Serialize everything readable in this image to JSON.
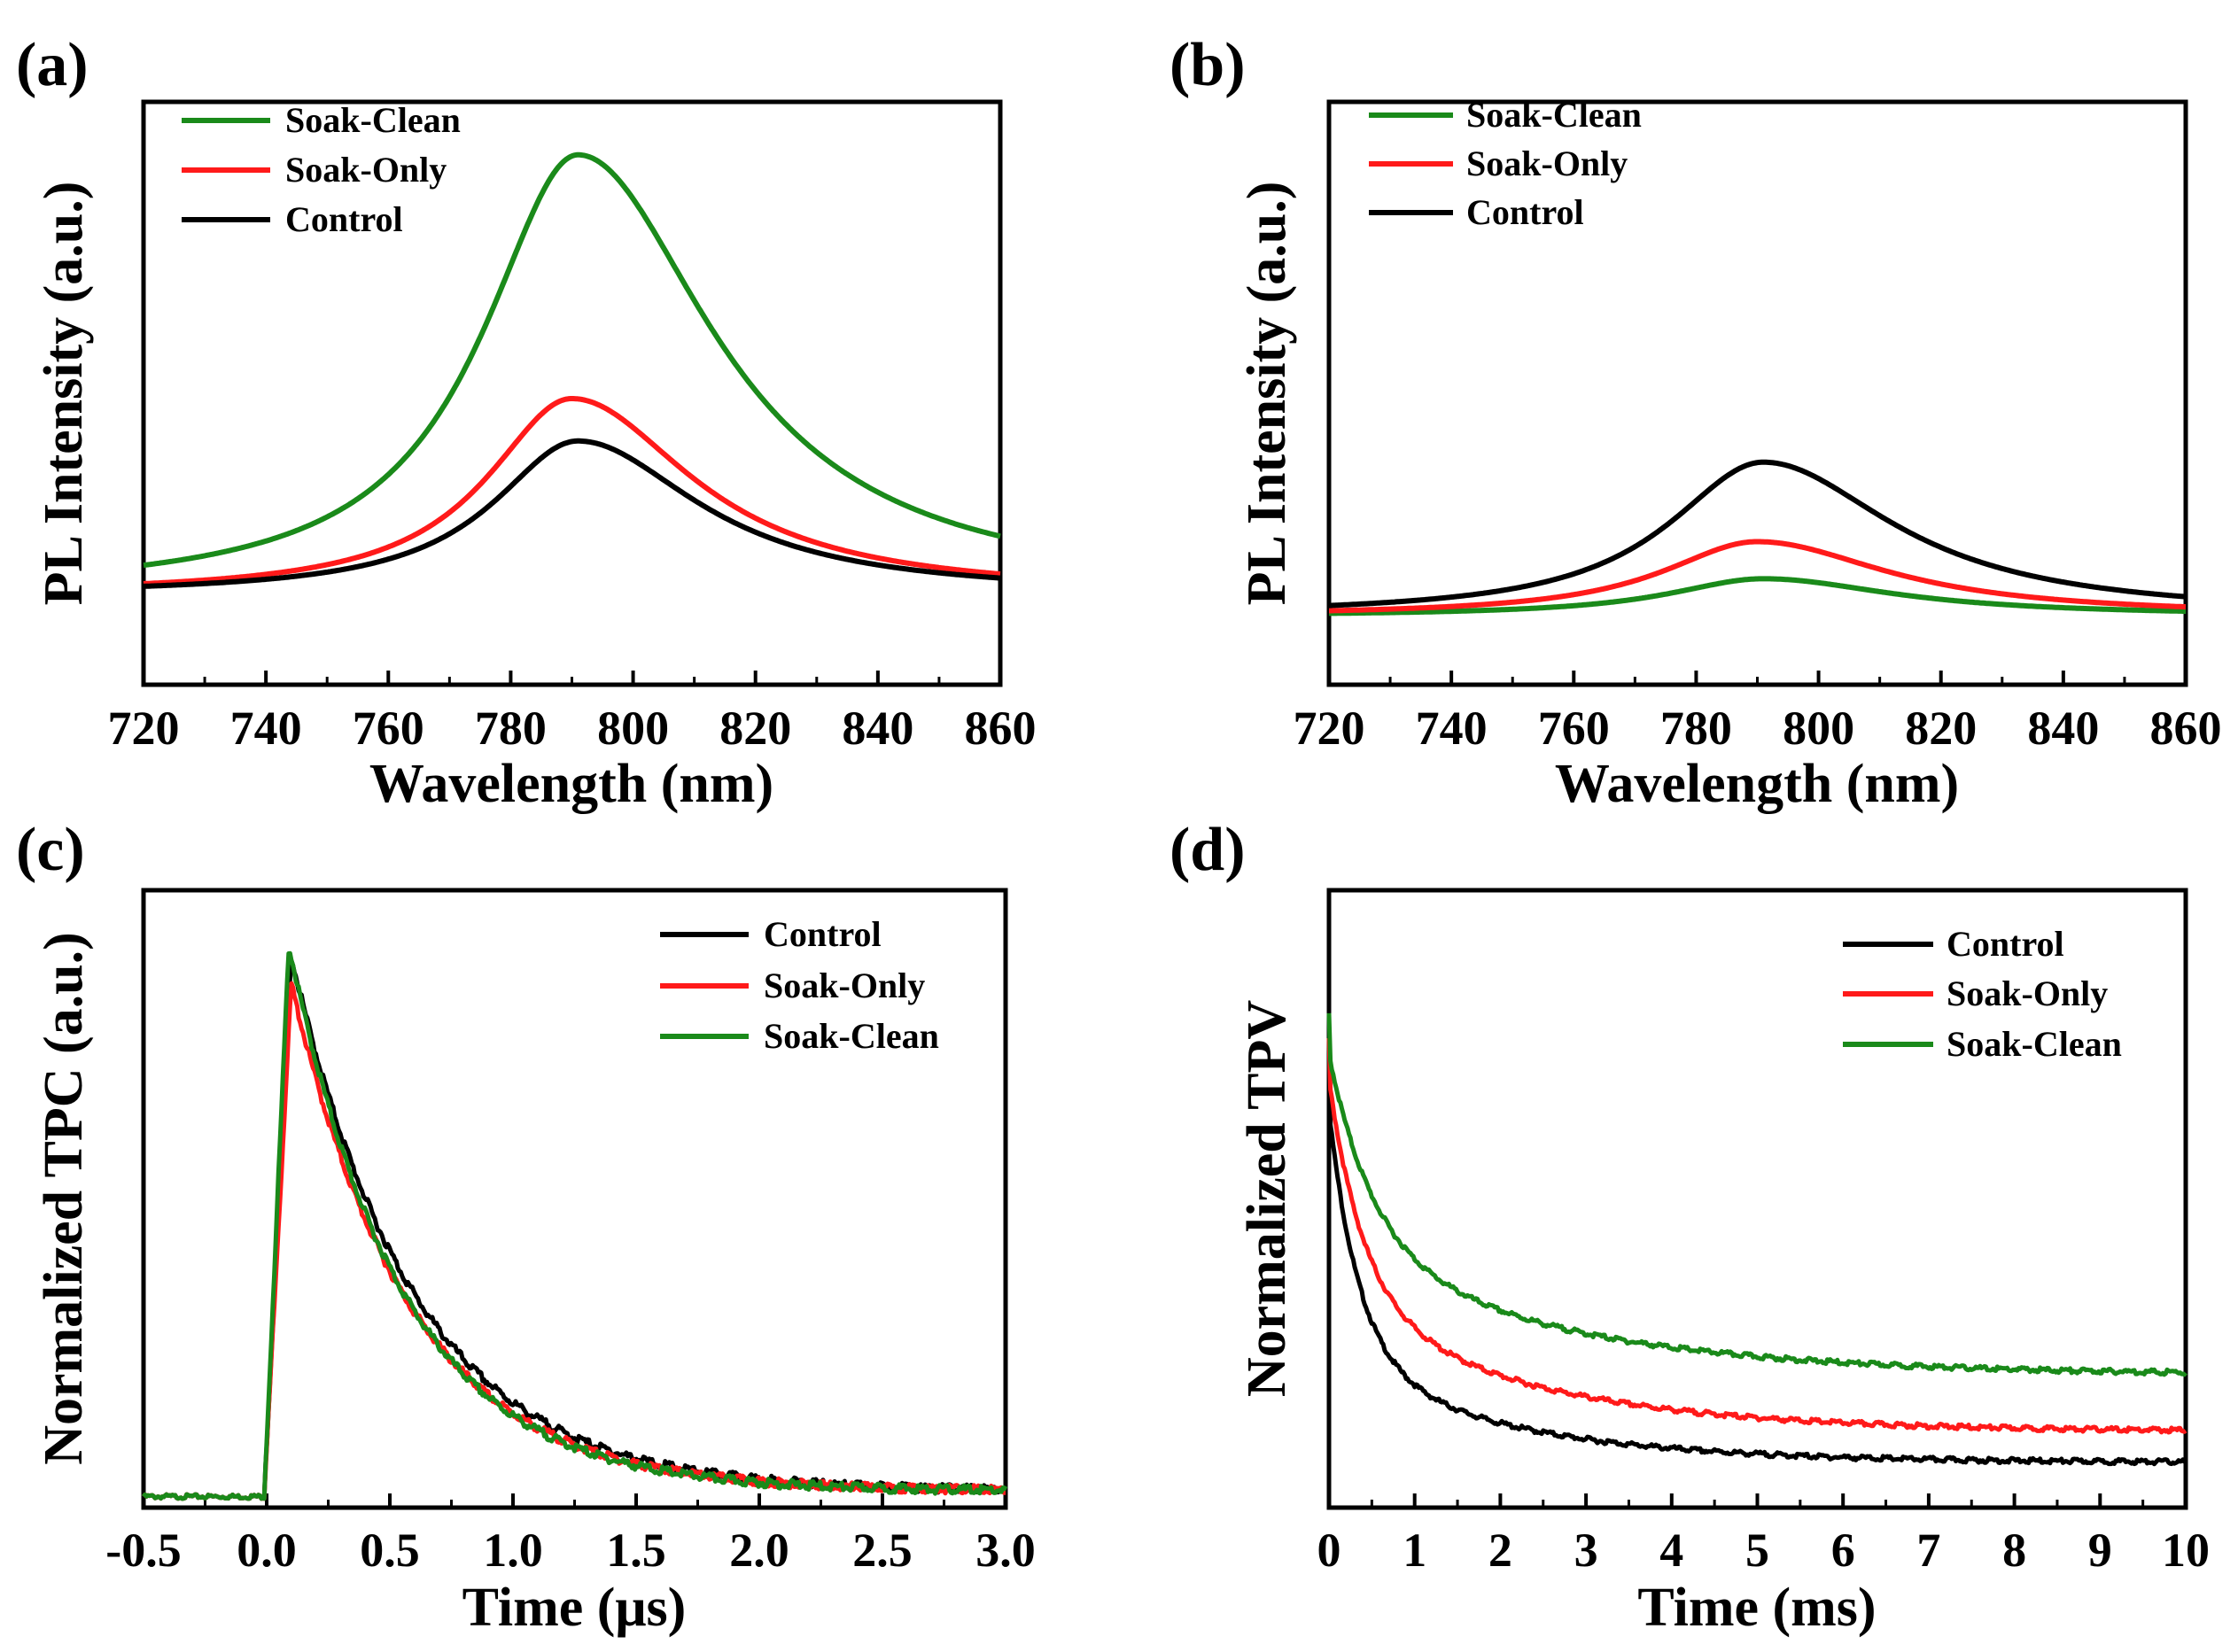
{
  "chart_data": [
    {
      "id": "a",
      "panel_label": "(a)",
      "type": "line",
      "xlabel": "Wavelength (nm)",
      "ylabel": "PL Intensity (a.u.)",
      "xlim": [
        720,
        860
      ],
      "ylim": [
        0,
        1.1
      ],
      "xticks": [
        720,
        740,
        760,
        780,
        800,
        820,
        840,
        860
      ],
      "xtick_labels": [
        "720",
        "740",
        "760",
        "780",
        "800",
        "820",
        "840",
        "860"
      ],
      "legend_position": "top-left",
      "legend": [
        "Soak-Clean",
        "Soak-Only",
        "Control"
      ],
      "series": [
        {
          "name": "Soak-Clean",
          "color": "#1a8a1a",
          "peak_x": 791,
          "peak": 1.0,
          "baseline": 0.17,
          "width_left": 19,
          "width_right": 27
        },
        {
          "name": "Soak-Only",
          "color": "#ff1a1a",
          "peak_x": 790,
          "peak": 0.54,
          "baseline": 0.17,
          "width_left": 17,
          "width_right": 24
        },
        {
          "name": "Control",
          "color": "#000000",
          "peak_x": 791,
          "peak": 0.46,
          "baseline": 0.17,
          "width_left": 17,
          "width_right": 24
        }
      ]
    },
    {
      "id": "b",
      "panel_label": "(b)",
      "type": "line",
      "xlabel": "Wavelength (nm)",
      "ylabel": "PL Intensity (a.u.)",
      "xlim": [
        720,
        860
      ],
      "ylim": [
        0,
        1.1
      ],
      "xticks": [
        720,
        740,
        760,
        780,
        800,
        820,
        840,
        860
      ],
      "xtick_labels": [
        "720",
        "740",
        "760",
        "780",
        "800",
        "820",
        "840",
        "860"
      ],
      "legend_position": "top-left",
      "legend": [
        "Soak-Clean",
        "Soak-Only",
        "Control"
      ],
      "series": [
        {
          "name": "Soak-Clean",
          "color": "#1a8a1a",
          "peak_x": 791,
          "peak": 0.2,
          "baseline": 0.13,
          "width_left": 19,
          "width_right": 26
        },
        {
          "name": "Soak-Only",
          "color": "#ff1a1a",
          "peak_x": 790,
          "peak": 0.27,
          "baseline": 0.13,
          "width_left": 19,
          "width_right": 26
        },
        {
          "name": "Control",
          "color": "#000000",
          "peak_x": 791,
          "peak": 0.42,
          "baseline": 0.13,
          "width_left": 19,
          "width_right": 26
        }
      ]
    },
    {
      "id": "c",
      "panel_label": "(c)",
      "type": "line",
      "xlabel": "Time (μs)",
      "ylabel": "Normalized TPC (a.u.)",
      "xlim": [
        -0.5,
        3.0
      ],
      "ylim": [
        -0.02,
        1.1
      ],
      "xticks": [
        -0.5,
        0.0,
        0.5,
        1.0,
        1.5,
        2.0,
        2.5,
        3.0
      ],
      "xtick_labels": [
        "-0.5",
        "0.0",
        "0.5",
        "1.0",
        "1.5",
        "2.0",
        "2.5",
        "3.0"
      ],
      "legend_position": "top-right",
      "legend": [
        "Control",
        "Soak-Only",
        "Soak-Clean"
      ],
      "series": [
        {
          "name": "Control",
          "color": "#000000",
          "onset": -0.01,
          "peak_t": 0.1,
          "peak": 0.98,
          "tau": 0.5,
          "floor": 0.01
        },
        {
          "name": "Soak-Only",
          "color": "#ff1a1a",
          "onset": -0.01,
          "peak_t": 0.1,
          "peak": 0.93,
          "tau": 0.48,
          "floor": 0.01
        },
        {
          "name": "Soak-Clean",
          "color": "#1a8a1a",
          "onset": -0.01,
          "peak_t": 0.09,
          "peak": 1.0,
          "tau": 0.46,
          "floor": 0.01
        }
      ]
    },
    {
      "id": "d",
      "panel_label": "(d)",
      "type": "line",
      "xlabel": "Time (ms)",
      "ylabel": "Normalized TPV",
      "xlim": [
        0,
        10
      ],
      "ylim": [
        0,
        1.0
      ],
      "xticks": [
        0,
        1,
        2,
        3,
        4,
        5,
        6,
        7,
        8,
        9,
        10
      ],
      "xtick_labels": [
        "0",
        "1",
        "2",
        "3",
        "4",
        "5",
        "6",
        "7",
        "8",
        "9",
        "10"
      ],
      "legend_position": "top-right",
      "legend": [
        "Control",
        "Soak-Only",
        "Soak-Clean"
      ],
      "series": [
        {
          "name": "Control",
          "color": "#000000",
          "start": 0.78,
          "fast_amp": 0.4,
          "fast_tau": 0.35,
          "slow_amp": 0.17,
          "slow_tau": 2.0,
          "floor": 0.073
        },
        {
          "name": "Soak-Only",
          "color": "#ff1a1a",
          "start": 0.76,
          "fast_amp": 0.35,
          "fast_tau": 0.4,
          "slow_amp": 0.22,
          "slow_tau": 2.2,
          "floor": 0.123
        },
        {
          "name": "Soak-Clean",
          "color": "#1a8a1a",
          "start": 0.8,
          "fast_amp": 0.3,
          "fast_tau": 0.5,
          "slow_amp": 0.22,
          "slow_tau": 2.5,
          "floor": 0.215
        }
      ]
    }
  ]
}
